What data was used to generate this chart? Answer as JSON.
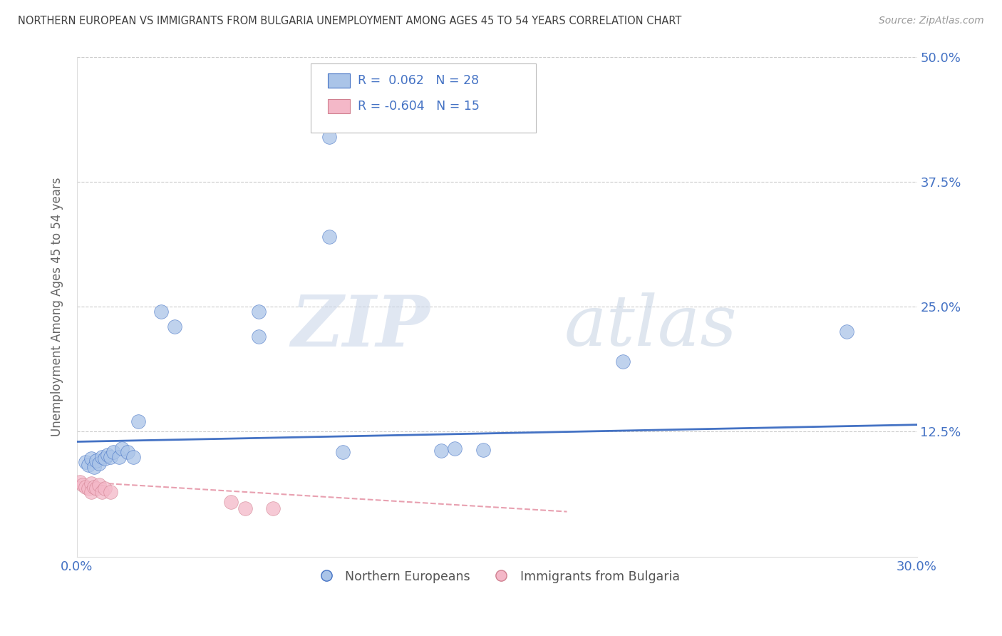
{
  "title": "NORTHERN EUROPEAN VS IMMIGRANTS FROM BULGARIA UNEMPLOYMENT AMONG AGES 45 TO 54 YEARS CORRELATION CHART",
  "source": "Source: ZipAtlas.com",
  "ylabel": "Unemployment Among Ages 45 to 54 years",
  "r_blue": 0.062,
  "n_blue": 28,
  "r_pink": -0.604,
  "n_pink": 15,
  "xlim": [
    0.0,
    0.3
  ],
  "ylim": [
    0.0,
    0.5
  ],
  "yticks": [
    0.0,
    0.125,
    0.25,
    0.375,
    0.5
  ],
  "ytick_labels": [
    "",
    "12.5%",
    "25.0%",
    "37.5%",
    "50.0%"
  ],
  "xticks": [
    0.0,
    0.06,
    0.12,
    0.18,
    0.24,
    0.3
  ],
  "xtick_labels": [
    "0.0%",
    "",
    "",
    "",
    "",
    "30.0%"
  ],
  "blue_scatter": [
    [
      0.003,
      0.095
    ],
    [
      0.004,
      0.092
    ],
    [
      0.005,
      0.098
    ],
    [
      0.006,
      0.09
    ],
    [
      0.007,
      0.096
    ],
    [
      0.008,
      0.093
    ],
    [
      0.009,
      0.1
    ],
    [
      0.01,
      0.098
    ],
    [
      0.011,
      0.102
    ],
    [
      0.012,
      0.1
    ],
    [
      0.013,
      0.105
    ],
    [
      0.015,
      0.1
    ],
    [
      0.016,
      0.108
    ],
    [
      0.018,
      0.105
    ],
    [
      0.02,
      0.1
    ],
    [
      0.022,
      0.135
    ],
    [
      0.03,
      0.245
    ],
    [
      0.035,
      0.23
    ],
    [
      0.065,
      0.245
    ],
    [
      0.065,
      0.22
    ],
    [
      0.09,
      0.42
    ],
    [
      0.09,
      0.32
    ],
    [
      0.095,
      0.105
    ],
    [
      0.13,
      0.106
    ],
    [
      0.135,
      0.108
    ],
    [
      0.145,
      0.107
    ],
    [
      0.195,
      0.195
    ],
    [
      0.275,
      0.225
    ]
  ],
  "pink_scatter": [
    [
      0.001,
      0.075
    ],
    [
      0.002,
      0.072
    ],
    [
      0.003,
      0.07
    ],
    [
      0.004,
      0.068
    ],
    [
      0.005,
      0.073
    ],
    [
      0.005,
      0.065
    ],
    [
      0.006,
      0.07
    ],
    [
      0.007,
      0.068
    ],
    [
      0.008,
      0.072
    ],
    [
      0.009,
      0.065
    ],
    [
      0.01,
      0.068
    ],
    [
      0.012,
      0.065
    ],
    [
      0.055,
      0.055
    ],
    [
      0.06,
      0.048
    ],
    [
      0.07,
      0.048
    ]
  ],
  "blue_line_x": [
    0.0,
    0.3
  ],
  "blue_line_y": [
    0.115,
    0.132
  ],
  "pink_line_x": [
    0.0,
    0.175
  ],
  "pink_line_y": [
    0.075,
    0.045
  ],
  "watermark_zip": "ZIP",
  "watermark_atlas": "atlas",
  "bg_color": "#ffffff",
  "blue_dot_color": "#aac4e8",
  "pink_dot_color": "#f4b8c8",
  "blue_line_color": "#4472c4",
  "pink_line_color": "#e8a0b0",
  "grid_color": "#cccccc",
  "title_color": "#404040",
  "axis_color": "#4472c4",
  "label_color": "#666666"
}
